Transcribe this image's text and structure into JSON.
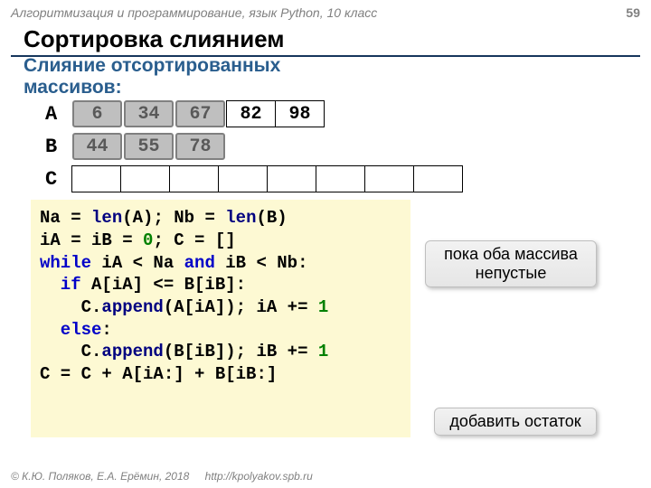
{
  "header": {
    "course": "Алгоритмизация и программирование, язык Python, 10 класс",
    "page": "59"
  },
  "title": "Сортировка слиянием",
  "subtitle_line1": "Слияние отсортированных",
  "subtitle_line2": "массивов:",
  "arrays": {
    "A": {
      "label": "A",
      "cells": [
        "6",
        "34",
        "67",
        "82",
        "98"
      ],
      "shaded_count": 3
    },
    "B": {
      "label": "B",
      "cells": [
        "44",
        "55",
        "78"
      ],
      "shaded_count": 3
    },
    "C": {
      "label": "C",
      "cell_count": 8
    }
  },
  "code": {
    "l1a": "Na = ",
    "l1b": "len",
    "l1c": "(A); Nb = ",
    "l1d": "len",
    "l1e": "(B)",
    "l2a": "iA = iB = ",
    "l2b": "0",
    "l2c": "; C = []",
    "l3a": "while",
    "l3b": " iA < Na ",
    "l3c": "and",
    "l3d": " iB < Nb:",
    "l4a": "  if",
    "l4b": " A[iA] <= B[iB]:",
    "l5a": "    C.",
    "l5b": "append",
    "l5c": "(A[iA]); iA += ",
    "l5d": "1",
    "l6a": "  else",
    "l6b": ":",
    "l7a": "    C.",
    "l7b": "append",
    "l7c": "(B[iB]); iB += ",
    "l7d": "1",
    "l8": "C = C + A[iA:] + B[iB:]"
  },
  "callouts": {
    "while_note": "пока оба массива непустые",
    "tail_note": "добавить остаток"
  },
  "footer": {
    "copyright": "© К.Ю. Поляков, Е.А. Ерёмин, 2018",
    "url": "http://kpolyakov.spb.ru"
  },
  "colors": {
    "keyword_blue": "#0000c8",
    "builtin_navy": "#000080",
    "number_green": "#008000",
    "code_bg": "#fdf9d3",
    "shaded_cell": "#bfbfbf",
    "subtitle": "#2a5e8e"
  }
}
